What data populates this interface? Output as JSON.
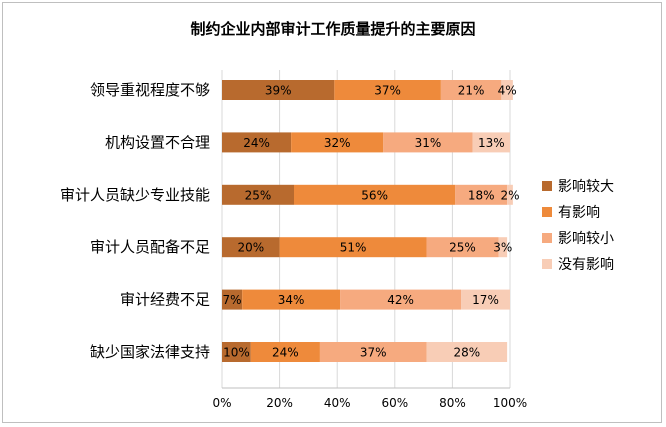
{
  "chart_data": {
    "type": "bar",
    "orientation": "horizontal",
    "stacked": true,
    "title": "制约企业内部审计工作质量提升的主要原因",
    "categories": [
      "领导重视程度不够",
      "机构设置不合理",
      "审计人员缺少专业技能",
      "审计人员配备不足",
      "审计经费不足",
      "缺少国家法律支持"
    ],
    "xlim": [
      0,
      100
    ],
    "x_ticks": [
      "0%",
      "20%",
      "40%",
      "60%",
      "80%",
      "100%"
    ],
    "grid": true,
    "legend_position": "right",
    "series": [
      {
        "name": "影响较大",
        "color": "#b86a2e",
        "values": [
          39,
          24,
          25,
          20,
          7,
          10
        ],
        "labels": [
          "39%",
          "24%",
          "25%",
          "20%",
          "7%",
          "10%"
        ]
      },
      {
        "name": "有影响",
        "color": "#ee8a3b",
        "values": [
          37,
          32,
          56,
          51,
          34,
          24
        ],
        "labels": [
          "37%",
          "32%",
          "56%",
          "51%",
          "34%",
          "24%"
        ]
      },
      {
        "name": "影响较小",
        "color": "#f6aa7f",
        "values": [
          21,
          31,
          18,
          25,
          42,
          37
        ],
        "labels": [
          "21%",
          "31%",
          "18%",
          "25%",
          "42%",
          "37%"
        ]
      },
      {
        "name": "没有影响",
        "color": "#f8cdb6",
        "values": [
          4,
          13,
          2,
          3,
          17,
          28
        ],
        "labels": [
          "4%",
          "13%",
          "2%",
          "3%",
          "17%",
          "28%"
        ]
      }
    ]
  }
}
